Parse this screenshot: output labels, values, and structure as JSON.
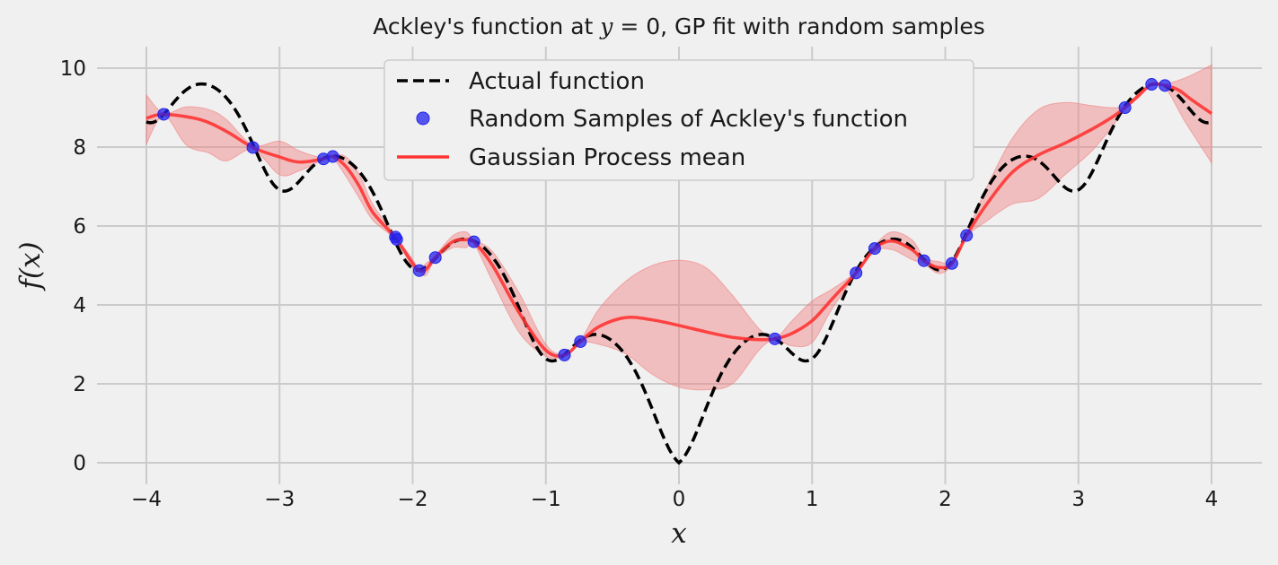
{
  "chart_data": {
    "type": "line",
    "title": "Ackley's function at y = 0, GP fit with random samples",
    "title_parts": [
      "Ackley's function at ",
      "y",
      " = 0, GP fit with random samples"
    ],
    "xlabel": "x",
    "ylabel": "f(x)",
    "xlim": [
      -4.4,
      4.4
    ],
    "ylim": [
      -0.6,
      10.5
    ],
    "xticks": [
      -4,
      -3,
      -2,
      -1,
      0,
      1,
      2,
      3,
      4
    ],
    "xtick_labels": [
      "−4",
      "−3",
      "−2",
      "−1",
      "0",
      "1",
      "2",
      "3",
      "4"
    ],
    "yticks": [
      0,
      2,
      4,
      6,
      8,
      10
    ],
    "ytick_labels": [
      "0",
      "2",
      "4",
      "6",
      "8",
      "10"
    ],
    "grid": true,
    "legend_position": "top-center",
    "colors": {
      "actual": "#000000",
      "samples": "#2222ee",
      "gp_mean": "#ff3333",
      "band": "#f08080",
      "grid": "#cbcbcb",
      "background": "#f0f0f0"
    },
    "series": [
      {
        "name": "Actual function",
        "kind": "dashed-line",
        "function": "ackley_y0",
        "x_range": [
          -4,
          4
        ]
      },
      {
        "name": "Random Samples of Ackley's function",
        "kind": "scatter",
        "x": [
          -3.87,
          -3.2,
          -2.67,
          -2.6,
          -2.13,
          -2.12,
          -1.95,
          -1.83,
          -1.54,
          -0.86,
          -0.74,
          0.72,
          1.33,
          1.47,
          1.84,
          2.05,
          2.16,
          3.35,
          3.55,
          3.65
        ],
        "y": [
          8.83,
          7.99,
          7.7,
          7.76,
          5.72,
          5.66,
          4.87,
          5.2,
          5.6,
          2.73,
          3.07,
          3.14,
          4.81,
          5.43,
          5.12,
          5.05,
          5.76,
          9.0,
          9.59,
          9.56
        ]
      },
      {
        "name": "Gaussian Process mean",
        "kind": "line",
        "x": [
          -4.0,
          -3.87,
          -3.6,
          -3.4,
          -3.2,
          -3.0,
          -2.85,
          -2.67,
          -2.6,
          -2.5,
          -2.4,
          -2.3,
          -2.13,
          -2.0,
          -1.95,
          -1.9,
          -1.83,
          -1.7,
          -1.6,
          -1.54,
          -1.4,
          -1.2,
          -1.0,
          -0.86,
          -0.74,
          -0.6,
          -0.4,
          -0.2,
          0.0,
          0.2,
          0.4,
          0.6,
          0.72,
          0.85,
          1.0,
          1.15,
          1.33,
          1.47,
          1.6,
          1.75,
          1.84,
          1.95,
          2.05,
          2.16,
          2.3,
          2.5,
          2.7,
          2.9,
          3.1,
          3.25,
          3.35,
          3.45,
          3.55,
          3.65,
          3.75,
          3.85,
          4.0
        ],
        "y": [
          8.73,
          8.83,
          8.7,
          8.4,
          7.99,
          7.75,
          7.62,
          7.7,
          7.76,
          7.5,
          7.0,
          6.35,
          5.7,
          5.05,
          4.87,
          4.9,
          5.2,
          5.6,
          5.65,
          5.6,
          5.0,
          3.8,
          2.85,
          2.73,
          3.07,
          3.45,
          3.68,
          3.62,
          3.48,
          3.32,
          3.18,
          3.12,
          3.14,
          3.28,
          3.6,
          4.15,
          4.81,
          5.43,
          5.62,
          5.4,
          5.12,
          4.95,
          5.05,
          5.76,
          6.5,
          7.35,
          7.8,
          8.1,
          8.45,
          8.75,
          9.0,
          9.3,
          9.59,
          9.56,
          9.45,
          9.2,
          8.85
        ]
      },
      {
        "name": "GP confidence band",
        "kind": "band",
        "x": [
          -4.0,
          -3.87,
          -3.7,
          -3.53,
          -3.4,
          -3.2,
          -3.0,
          -2.85,
          -2.67,
          -2.6,
          -2.5,
          -2.4,
          -2.3,
          -2.13,
          -2.0,
          -1.95,
          -1.9,
          -1.83,
          -1.7,
          -1.6,
          -1.54,
          -1.4,
          -1.2,
          -1.0,
          -0.86,
          -0.74,
          -0.6,
          -0.4,
          -0.2,
          0.0,
          0.2,
          0.4,
          0.6,
          0.72,
          0.85,
          1.0,
          1.15,
          1.33,
          1.47,
          1.6,
          1.75,
          1.84,
          1.95,
          2.05,
          2.16,
          2.3,
          2.5,
          2.7,
          2.9,
          3.1,
          3.25,
          3.35,
          3.45,
          3.55,
          3.65,
          3.8,
          4.0
        ],
        "upper": [
          9.32,
          8.86,
          9.02,
          8.95,
          8.7,
          8.05,
          8.15,
          7.9,
          7.72,
          7.8,
          7.75,
          7.3,
          6.55,
          5.75,
          5.15,
          4.9,
          5.05,
          5.25,
          5.75,
          5.85,
          5.65,
          5.35,
          4.3,
          3.0,
          2.76,
          3.1,
          3.9,
          4.6,
          5.0,
          5.13,
          4.95,
          4.25,
          3.4,
          3.16,
          3.6,
          4.1,
          4.4,
          4.85,
          5.5,
          5.85,
          5.65,
          5.2,
          5.1,
          5.1,
          5.8,
          6.9,
          8.2,
          8.95,
          9.13,
          9.05,
          9.0,
          9.05,
          9.35,
          9.62,
          9.6,
          9.75,
          10.08
        ],
        "lower": [
          8.08,
          8.8,
          8.05,
          7.85,
          7.65,
          7.93,
          7.3,
          7.4,
          7.68,
          7.72,
          7.25,
          6.7,
          6.15,
          5.65,
          4.95,
          4.84,
          4.75,
          5.15,
          5.45,
          5.45,
          5.55,
          4.6,
          3.3,
          2.7,
          2.7,
          3.04,
          3.0,
          2.76,
          2.24,
          1.92,
          1.85,
          2.0,
          2.85,
          3.12,
          2.96,
          3.05,
          3.9,
          4.77,
          5.36,
          5.4,
          5.15,
          5.04,
          4.8,
          5.0,
          5.72,
          6.1,
          6.55,
          6.7,
          7.3,
          7.9,
          8.5,
          8.95,
          9.25,
          9.56,
          9.52,
          8.65,
          7.6
        ]
      }
    ]
  }
}
